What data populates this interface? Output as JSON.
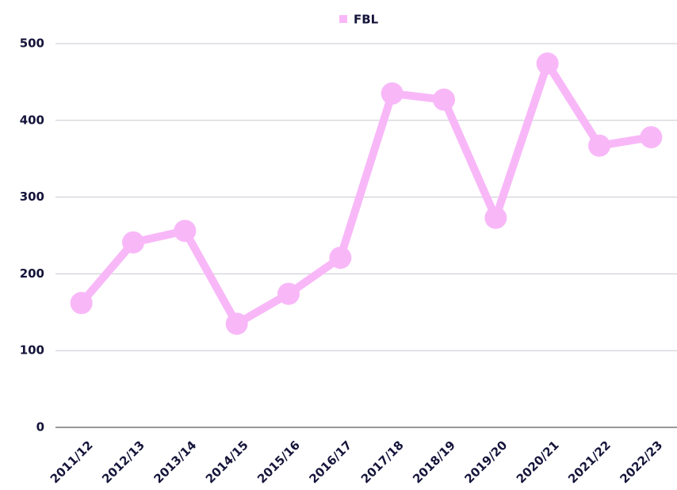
{
  "chart_data": {
    "type": "line",
    "categories": [
      "2011/12",
      "2012/13",
      "2013/14",
      "2014/15",
      "2015/16",
      "2016/17",
      "2017/18",
      "2018/19",
      "2019/20",
      "2020/21",
      "2021/22",
      "2022/23"
    ],
    "series": [
      {
        "name": "FBL",
        "color": "#f8b8f8",
        "values": [
          162,
          241,
          256,
          135,
          174,
          221,
          435,
          427,
          273,
          474,
          367,
          378
        ]
      }
    ],
    "ylim": [
      0,
      500
    ],
    "yticks": [
      0,
      100,
      200,
      300,
      400,
      500
    ],
    "grid": true,
    "legend": "top"
  }
}
